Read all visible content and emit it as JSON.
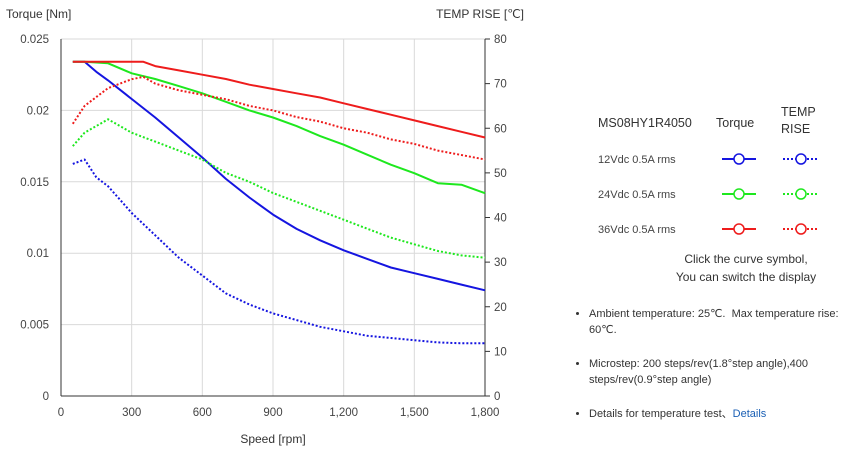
{
  "chart_data": {
    "type": "line",
    "x_label": "Speed [rpm]",
    "y_left_label": "Torque  [Nm]",
    "y_right_label": "TEMP RISE [℃]",
    "x_range": [
      0,
      1800
    ],
    "x_ticks": [
      "0",
      "300",
      "600",
      "900",
      "1,200",
      "1,500",
      "1,800"
    ],
    "x_tick_values": [
      0,
      300,
      600,
      900,
      1200,
      1500,
      1800
    ],
    "y_left_range": [
      0,
      0.025
    ],
    "y_left_ticks": [
      "0",
      "0.005",
      "0.01",
      "0.015",
      "0.02",
      "0.025"
    ],
    "y_left_tick_values": [
      0,
      0.005,
      0.01,
      0.015,
      0.02,
      0.025
    ],
    "y_right_range": [
      0,
      80
    ],
    "y_right_ticks": [
      "0",
      "10",
      "20",
      "30",
      "40",
      "50",
      "60",
      "70",
      "80"
    ],
    "y_right_tick_values": [
      0,
      10,
      20,
      30,
      40,
      50,
      60,
      70,
      80
    ],
    "grid": true,
    "series": [
      {
        "name": "12Vdc Torque",
        "axis": "left",
        "color": "#1515e0",
        "dash": false,
        "x": [
          50,
          100,
          150,
          200,
          300,
          400,
          500,
          600,
          700,
          800,
          900,
          1000,
          1100,
          1200,
          1300,
          1400,
          1500,
          1600,
          1700,
          1800
        ],
        "y": [
          0.0234,
          0.0234,
          0.0227,
          0.0221,
          0.0208,
          0.0195,
          0.0181,
          0.0167,
          0.0152,
          0.0139,
          0.0127,
          0.0117,
          0.0109,
          0.0102,
          0.0096,
          0.009,
          0.0086,
          0.0082,
          0.0078,
          0.0074
        ]
      },
      {
        "name": "24Vdc Torque",
        "axis": "left",
        "color": "#1ee81e",
        "dash": false,
        "x": [
          50,
          100,
          200,
          300,
          400,
          500,
          600,
          700,
          800,
          900,
          1000,
          1100,
          1200,
          1300,
          1400,
          1500,
          1600,
          1700,
          1800
        ],
        "y": [
          0.0234,
          0.0234,
          0.0233,
          0.0226,
          0.0222,
          0.0217,
          0.0212,
          0.0206,
          0.02,
          0.0195,
          0.0189,
          0.0182,
          0.0176,
          0.0169,
          0.0162,
          0.0156,
          0.0149,
          0.0148,
          0.0142
        ]
      },
      {
        "name": "36Vdc Torque",
        "axis": "left",
        "color": "#ee1c1c",
        "dash": false,
        "x": [
          50,
          100,
          200,
          300,
          350,
          400,
          500,
          600,
          700,
          800,
          900,
          1000,
          1100,
          1200,
          1300,
          1400,
          1500,
          1600,
          1700,
          1800
        ],
        "y": [
          0.0234,
          0.0234,
          0.0234,
          0.0234,
          0.0234,
          0.0231,
          0.0228,
          0.0225,
          0.0222,
          0.0218,
          0.0215,
          0.0212,
          0.0209,
          0.0205,
          0.0201,
          0.0197,
          0.0193,
          0.0189,
          0.0185,
          0.0181
        ]
      },
      {
        "name": "12Vdc TEMP RISE",
        "axis": "right",
        "color": "#1515e0",
        "dash": true,
        "x": [
          50,
          100,
          150,
          200,
          250,
          300,
          400,
          500,
          600,
          700,
          800,
          900,
          1000,
          1100,
          1200,
          1300,
          1400,
          1500,
          1600,
          1700,
          1800
        ],
        "y": [
          52,
          53,
          49,
          47,
          44,
          41,
          36,
          31,
          27,
          23,
          20.5,
          18.5,
          17,
          15.5,
          14.5,
          13.5,
          13,
          12.5,
          12,
          11.8,
          11.8
        ]
      },
      {
        "name": "24Vdc TEMP RISE",
        "axis": "right",
        "color": "#1ee81e",
        "dash": true,
        "x": [
          50,
          100,
          200,
          300,
          350,
          400,
          500,
          600,
          700,
          800,
          900,
          1000,
          1100,
          1200,
          1300,
          1400,
          1500,
          1600,
          1700,
          1800
        ],
        "y": [
          56,
          59,
          62,
          59,
          58,
          57,
          55,
          53,
          50,
          48,
          45.5,
          43.5,
          41.5,
          39.5,
          37.5,
          35.5,
          34,
          32.5,
          31.5,
          31
        ]
      },
      {
        "name": "36Vdc TEMP RISE",
        "axis": "right",
        "color": "#ee1c1c",
        "dash": true,
        "x": [
          50,
          100,
          200,
          300,
          350,
          400,
          500,
          600,
          700,
          800,
          900,
          1000,
          1100,
          1200,
          1300,
          1400,
          1500,
          1600,
          1700,
          1800
        ],
        "y": [
          61,
          65,
          69,
          71,
          71.5,
          70,
          68.5,
          67.5,
          66.5,
          65,
          64,
          62.5,
          61.5,
          60,
          59,
          57.5,
          56.5,
          55,
          54,
          53
        ]
      }
    ]
  },
  "legend": {
    "model": "MS08HY1R4050",
    "torque_header": "Torque",
    "temp_header_line1": "TEMP",
    "temp_header_line2": "RISE",
    "rows": [
      {
        "label": "12Vdc   0.5A rms",
        "color": "#1515e0"
      },
      {
        "label": "24Vdc   0.5A rms",
        "color": "#1ee81e"
      },
      {
        "label": "36Vdc   0.5A rms",
        "color": "#ee1c1c"
      }
    ],
    "note_line1": "Click the curve symbol,",
    "note_line2": "You can switch the display"
  },
  "notes": {
    "ambient": "Ambient temperature: 25℃.  Max temperature rise: 60℃.",
    "microstep": "Microstep: 200 steps/rev(1.8°step angle),400 steps/rev(0.9°step angle)",
    "details_text": "Details for temperature test、",
    "details_link": "Details"
  }
}
